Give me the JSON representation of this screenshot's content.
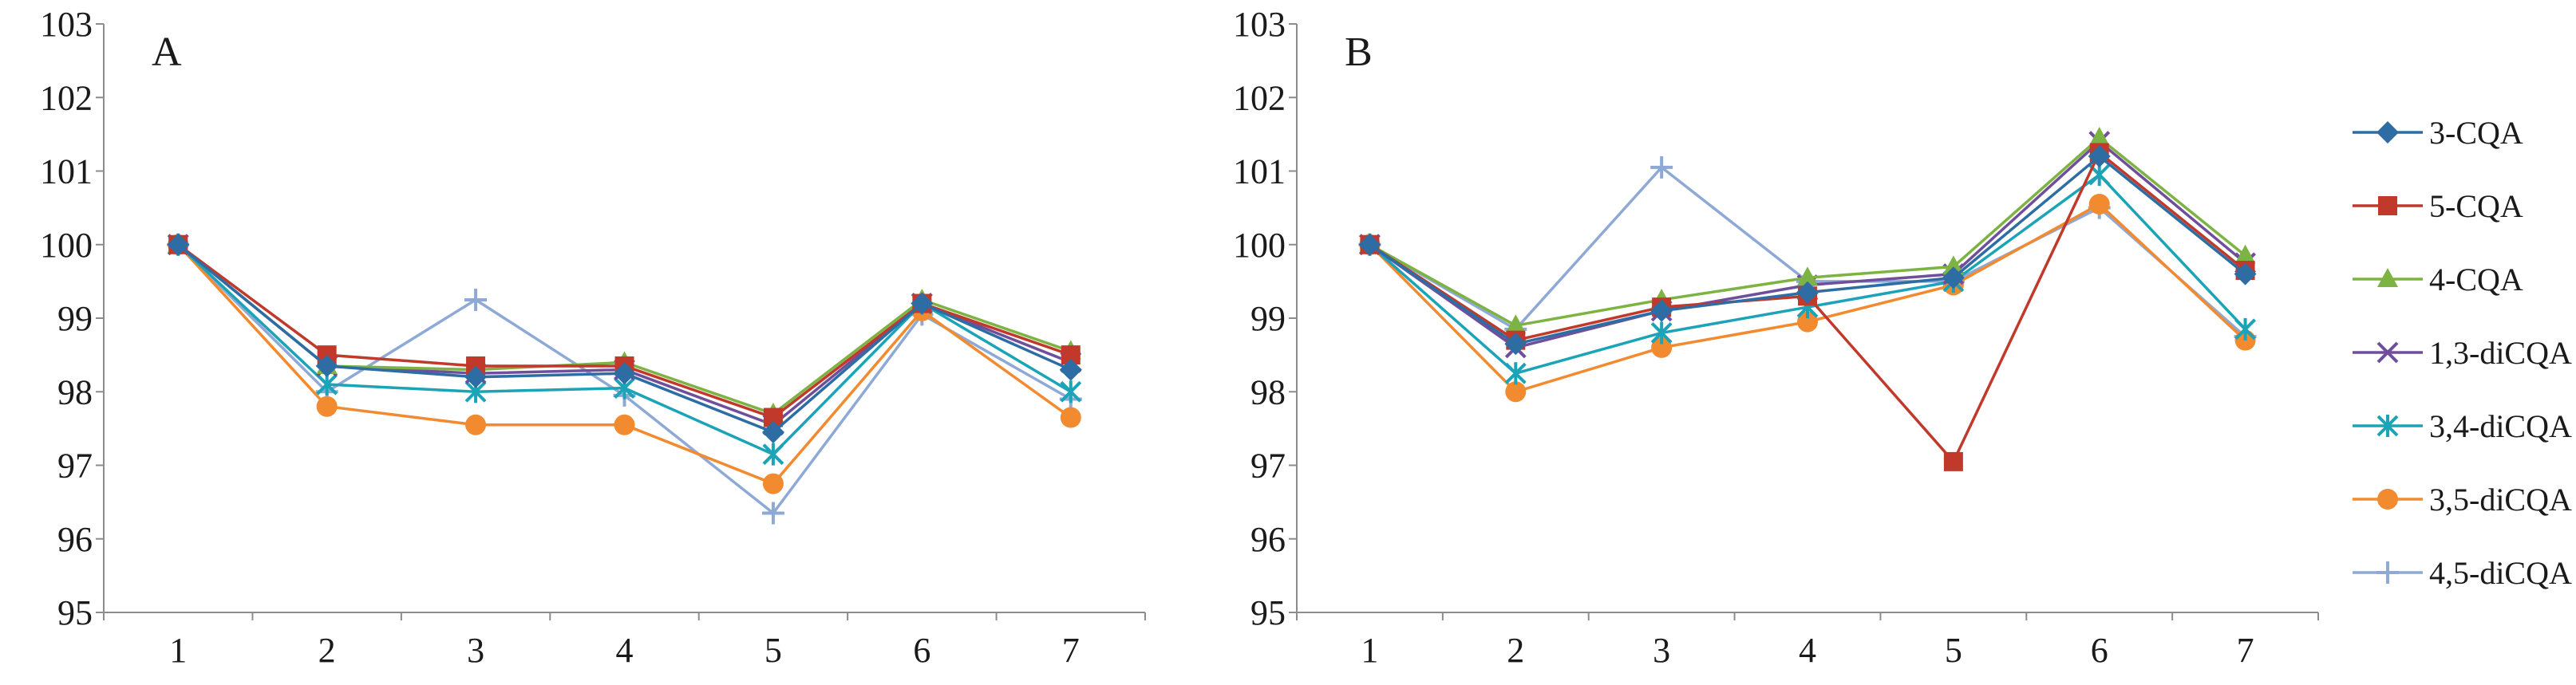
{
  "colors": {
    "axis": "#8c8c8c",
    "text": "#1a1a1a",
    "series": [
      "#2e6da4",
      "#c0392b",
      "#7db342",
      "#6f4f9c",
      "#1ba3b7",
      "#f28a30",
      "#8ea9d6"
    ]
  },
  "chart_data": [
    {
      "type": "line",
      "title": "A",
      "categories": [
        "1",
        "2",
        "3",
        "4",
        "5",
        "6",
        "7"
      ],
      "xlabel": "",
      "ylabel": "",
      "ylim": [
        95,
        103
      ],
      "yticks": [
        "95",
        "96",
        "97",
        "98",
        "99",
        "100",
        "101",
        "102",
        "103"
      ],
      "legend": null,
      "series": [
        {
          "name": "3-CQA",
          "marker": "diamond",
          "values": [
            100.0,
            98.35,
            98.2,
            98.25,
            97.45,
            99.2,
            98.3
          ]
        },
        {
          "name": "5-CQA",
          "marker": "square",
          "values": [
            100.0,
            98.5,
            98.35,
            98.35,
            97.65,
            99.2,
            98.5
          ]
        },
        {
          "name": "4-CQA",
          "marker": "triangle",
          "values": [
            100.0,
            98.35,
            98.3,
            98.4,
            97.7,
            99.25,
            98.55
          ]
        },
        {
          "name": "1,3-diCQA",
          "marker": "x",
          "values": [
            100.0,
            98.35,
            98.25,
            98.3,
            97.55,
            99.2,
            98.4
          ]
        },
        {
          "name": "3,4-diCQA",
          "marker": "star",
          "values": [
            100.0,
            98.1,
            98.0,
            98.05,
            97.15,
            99.2,
            98.0
          ]
        },
        {
          "name": "3,5-diCQA",
          "marker": "circle",
          "values": [
            100.0,
            97.8,
            97.55,
            97.55,
            96.75,
            99.1,
            97.65
          ]
        },
        {
          "name": "4,5-diCQA",
          "marker": "plus",
          "values": [
            100.0,
            98.0,
            99.25,
            97.95,
            96.35,
            99.05,
            97.9
          ]
        }
      ]
    },
    {
      "type": "line",
      "title": "B",
      "categories": [
        "1",
        "2",
        "3",
        "4",
        "5",
        "6",
        "7"
      ],
      "xlabel": "",
      "ylabel": "",
      "ylim": [
        95,
        103
      ],
      "yticks": [
        "95",
        "96",
        "97",
        "98",
        "99",
        "100",
        "101",
        "102",
        "103"
      ],
      "legend": "right",
      "series": [
        {
          "name": "3-CQA",
          "marker": "diamond",
          "values": [
            100.0,
            98.65,
            99.1,
            99.35,
            99.55,
            101.2,
            99.6
          ]
        },
        {
          "name": "5-CQA",
          "marker": "square",
          "values": [
            100.0,
            98.7,
            99.15,
            99.3,
            97.05,
            101.25,
            99.65
          ]
        },
        {
          "name": "4-CQA",
          "marker": "triangle",
          "values": [
            100.0,
            98.9,
            99.25,
            99.55,
            99.7,
            101.45,
            99.85
          ]
        },
        {
          "name": "1,3-diCQA",
          "marker": "x",
          "values": [
            100.0,
            98.6,
            99.1,
            99.45,
            99.6,
            101.4,
            99.75
          ]
        },
        {
          "name": "3,4-diCQA",
          "marker": "star",
          "values": [
            100.0,
            98.25,
            98.8,
            99.15,
            99.5,
            100.95,
            98.85
          ]
        },
        {
          "name": "3,5-diCQA",
          "marker": "circle",
          "values": [
            100.0,
            98.0,
            98.6,
            98.95,
            99.45,
            100.55,
            98.7
          ]
        },
        {
          "name": "4,5-diCQA",
          "marker": "plus",
          "values": [
            100.0,
            98.85,
            101.05,
            99.5,
            99.5,
            100.5,
            98.75
          ]
        }
      ]
    }
  ]
}
